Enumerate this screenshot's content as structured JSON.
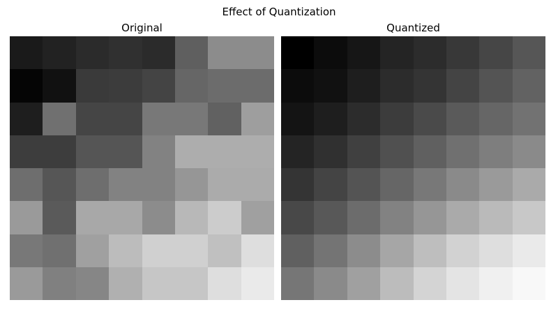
{
  "figure": {
    "title": "Effect of Quantization",
    "background_color": "#ffffff",
    "text_color": "#000000"
  },
  "chart_data": [
    {
      "type": "heatmap",
      "title": "Original",
      "colormap": "gray",
      "value_range": [
        0,
        255
      ],
      "grid_size": [
        8,
        8
      ],
      "axes": "off",
      "values": [
        [
          26,
          34,
          43,
          48,
          43,
          95,
          140,
          140
        ],
        [
          5,
          17,
          58,
          60,
          68,
          102,
          108,
          108
        ],
        [
          30,
          112,
          69,
          69,
          120,
          120,
          97,
          158
        ],
        [
          61,
          61,
          85,
          85,
          130,
          173,
          173,
          173
        ],
        [
          110,
          86,
          110,
          130,
          130,
          150,
          171,
          171
        ],
        [
          154,
          90,
          168,
          168,
          140,
          184,
          204,
          160
        ],
        [
          120,
          112,
          160,
          188,
          208,
          208,
          192,
          222
        ],
        [
          154,
          128,
          134,
          176,
          198,
          198,
          222,
          234
        ]
      ]
    },
    {
      "type": "heatmap",
      "title": "Quantized",
      "colormap": "gray",
      "value_range": [
        0,
        255
      ],
      "grid_size": [
        8,
        8
      ],
      "axes": "off",
      "values": [
        [
          0,
          12,
          22,
          36,
          44,
          56,
          70,
          86
        ],
        [
          12,
          17,
          30,
          44,
          52,
          68,
          84,
          98
        ],
        [
          20,
          30,
          44,
          60,
          74,
          90,
          102,
          114
        ],
        [
          36,
          48,
          64,
          80,
          96,
          112,
          126,
          138
        ],
        [
          52,
          68,
          84,
          102,
          120,
          138,
          154,
          170
        ],
        [
          72,
          88,
          108,
          130,
          150,
          170,
          186,
          200
        ],
        [
          96,
          116,
          140,
          166,
          190,
          210,
          222,
          234
        ],
        [
          118,
          138,
          160,
          188,
          212,
          228,
          240,
          248
        ]
      ]
    }
  ]
}
